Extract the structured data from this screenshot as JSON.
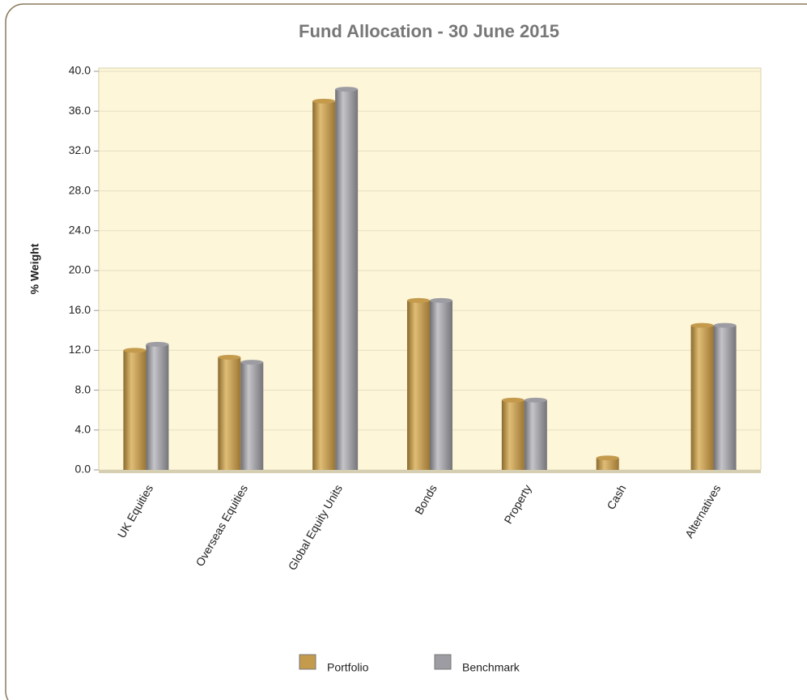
{
  "chart_data": {
    "type": "bar",
    "title": "Fund Allocation - 30 June 2015",
    "y_label": "% Weight",
    "categories": [
      "UK Equities",
      "Overseas Equities",
      "Global Equity Units",
      "Bonds",
      "Property",
      "Cash",
      "Alternatives"
    ],
    "series": [
      {
        "name": "Portfolio",
        "color": "#c49a4c",
        "values": [
          12.0,
          11.3,
          37.0,
          17.0,
          7.0,
          1.2,
          14.5
        ]
      },
      {
        "name": "Benchmark",
        "color": "#9c9ca2",
        "values": [
          12.6,
          10.8,
          38.2,
          17.0,
          7.0,
          0,
          14.5
        ]
      }
    ],
    "ylim": [
      0,
      40
    ],
    "yticks": [
      {
        "value": 0,
        "label": "0.0"
      },
      {
        "value": 4,
        "label": "4.0"
      },
      {
        "value": 8,
        "label": "8.0"
      },
      {
        "value": 12,
        "label": "12.0"
      },
      {
        "value": 16,
        "label": "16.0"
      },
      {
        "value": 20,
        "label": "20.0"
      },
      {
        "value": 24,
        "label": "24.0"
      },
      {
        "value": 28,
        "label": "28.0"
      },
      {
        "value": 32,
        "label": "32.0"
      },
      {
        "value": 36,
        "label": "36.0"
      },
      {
        "value": 40,
        "label": "40.0"
      }
    ],
    "grid": true,
    "legend": "bottom"
  }
}
